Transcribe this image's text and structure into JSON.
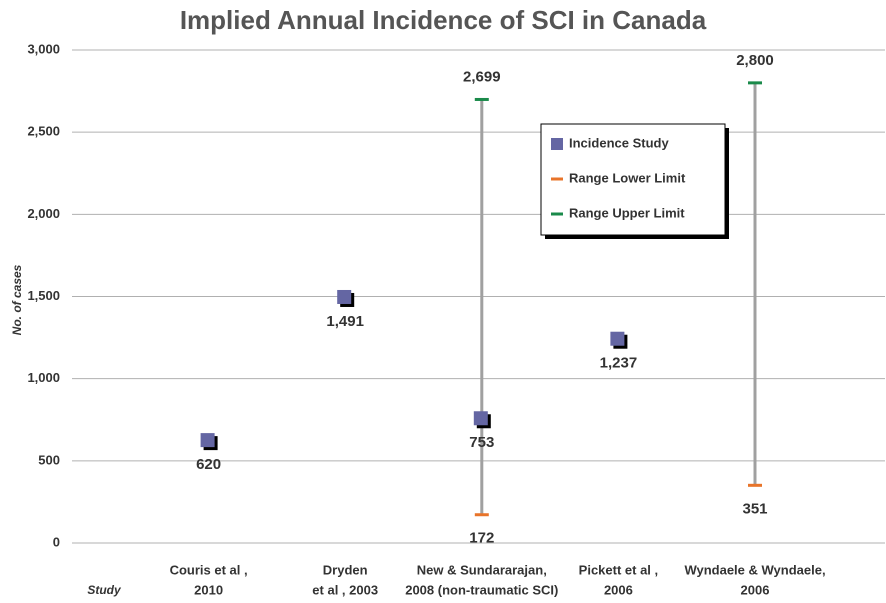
{
  "chart_data": {
    "type": "scatter",
    "title": "Implied Annual Incidence of SCI in Canada",
    "y_label": "No. of cases",
    "x_label": "Study",
    "categories": [
      [
        "Couris et al ,",
        "2010"
      ],
      [
        "Dryden",
        "et al , 2003"
      ],
      [
        "New & Sundararajan,",
        "2008 (non-traumatic SCI)"
      ],
      [
        "Pickett et al ,",
        "2006"
      ],
      [
        "Wyndaele & Wyndaele,",
        "2006"
      ]
    ],
    "series": [
      {
        "name": "Incidence Study",
        "color": "#6466a3",
        "marker": "square",
        "values": [
          620,
          1491,
          753,
          1237,
          null
        ],
        "value_labels": [
          "620",
          "1,491",
          "753",
          "1,237",
          null
        ]
      },
      {
        "name": "Range Lower Limit",
        "color": "#e8742a",
        "marker": "dash",
        "values": [
          null,
          null,
          172,
          null,
          351
        ],
        "value_labels": [
          null,
          null,
          "172",
          null,
          "351"
        ]
      },
      {
        "name": "Range Upper Limit",
        "color": "#1a8a4a",
        "marker": "dash",
        "values": [
          null,
          null,
          2699,
          null,
          2800
        ],
        "value_labels": [
          null,
          null,
          "2,699",
          null,
          "2,800"
        ]
      }
    ],
    "range_line_color": "#a0a0a0",
    "ylim": [
      0,
      3000
    ],
    "yticks": [
      0,
      {
        "value": 500,
        "label": "500"
      },
      {
        "value": 1000,
        "label": "1,000"
      },
      {
        "value": 1500,
        "label": "1,500"
      },
      {
        "value": 2000,
        "label": "2,000"
      },
      {
        "value": 2500,
        "label": "2,500"
      },
      {
        "value": 3000,
        "label": "3,000"
      }
    ],
    "grid": true,
    "legend": "top-right"
  }
}
